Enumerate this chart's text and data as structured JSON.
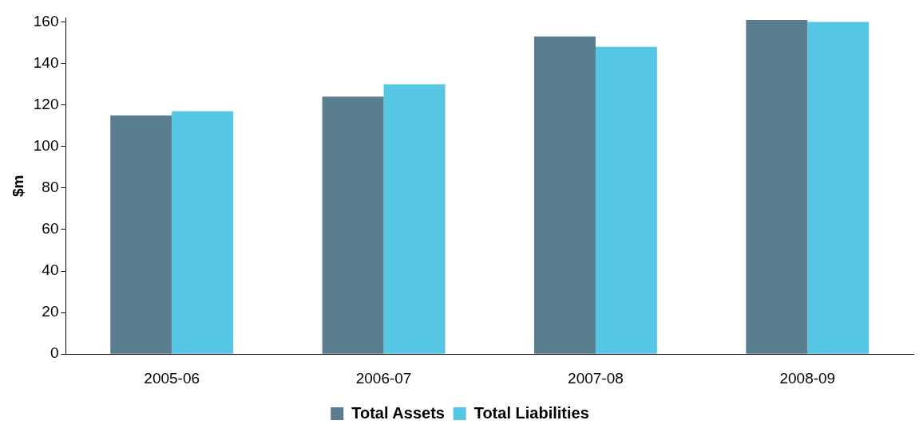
{
  "chart_data": {
    "type": "bar",
    "ylabel": "$m",
    "categories": [
      "2005-06",
      "2006-07",
      "2007-08",
      "2008-09"
    ],
    "series": [
      {
        "name": "Total Assets",
        "color": "#5a7d90",
        "values": [
          115,
          124,
          153,
          161
        ]
      },
      {
        "name": "Total Liabilities",
        "color": "#55c6e3",
        "values": [
          117,
          130,
          148,
          160
        ]
      }
    ],
    "ylim": [
      0,
      162
    ],
    "yticks": [
      0,
      20,
      40,
      60,
      80,
      100,
      120,
      140,
      160
    ],
    "grid": false,
    "legend": "bottom"
  }
}
